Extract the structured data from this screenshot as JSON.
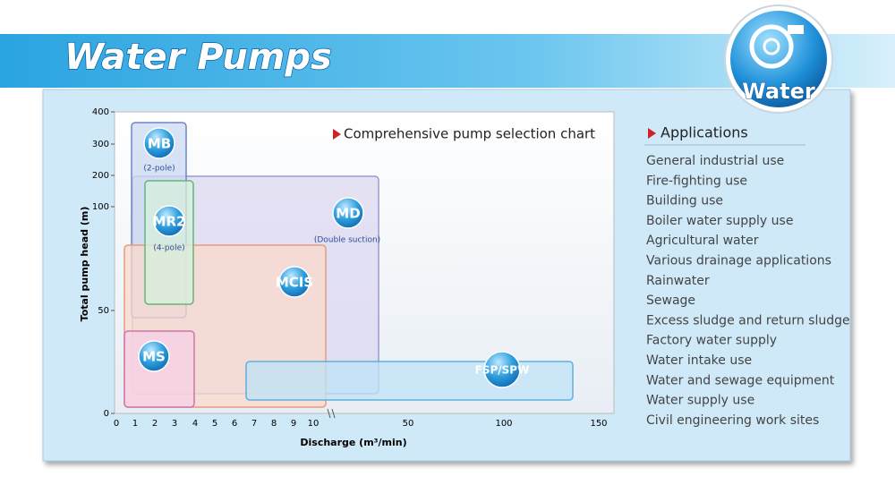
{
  "header": {
    "title": "Water Pumps",
    "badge": "Water"
  },
  "selection_chart": {
    "title": "Comprehensive pump selection chart",
    "y_axis_label": "Total pump head (m)",
    "x_axis_label": "Discharge (m³/min)",
    "y_tick_labels": [
      400,
      300,
      200,
      100,
      50,
      0
    ],
    "x_tick_labels": [
      0,
      1,
      2,
      3,
      4,
      5,
      6,
      7,
      8,
      9,
      10,
      50,
      100,
      150
    ],
    "regions": [
      {
        "label": "MD",
        "note": "(Double suction)"
      },
      {
        "label": "MB",
        "note": "(2-pole)"
      },
      {
        "label": "MCIS"
      },
      {
        "label": "MR2",
        "note": "(4-pole)"
      },
      {
        "label": "MS"
      },
      {
        "label": "FSP/SPW"
      }
    ]
  },
  "applications": {
    "title": "Applications",
    "items": [
      "General industrial use",
      "Fire-fighting use",
      "Building use",
      "Boiler water supply use",
      "Agricultural water",
      "Various drainage applications",
      "Rainwater",
      "Sewage",
      "Excess sludge and return sludge",
      "Factory water supply",
      "Water intake use",
      "Water and sewage equipment",
      "Water supply use",
      "Civil engineering work sites"
    ]
  }
}
